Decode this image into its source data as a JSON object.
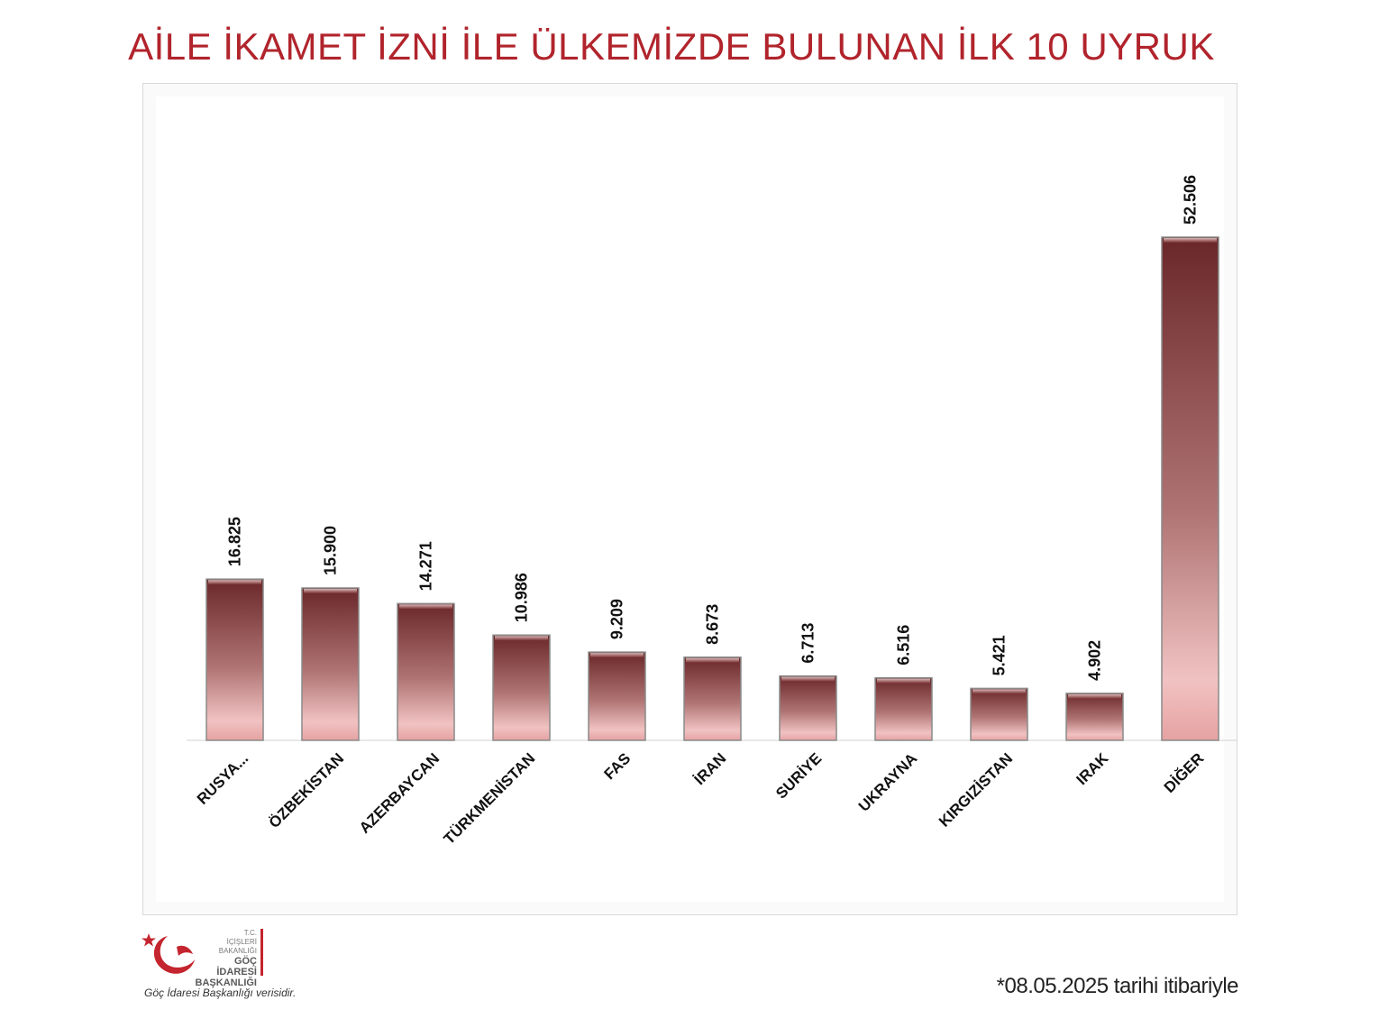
{
  "header": {
    "title": "AİLE İKAMET İZNİ İLE ÜLKEMİZDE BULUNAN İLK 10 UYRUK"
  },
  "logo": {
    "line1": "T.C.",
    "line2": "İÇİŞLERİ BAKANLIĞI",
    "line3": "GÖÇ İDARESİ",
    "line4": "BAŞKANLIĞI"
  },
  "footer": {
    "source": "Göç İdaresi Başkanlığı verisidir.",
    "date_note": "*08.05.2025 tarihi itibariyle"
  },
  "colors": {
    "title": "#b1242c",
    "bar_dark": "#6e2a2c",
    "bar_light": "#f2c3c3",
    "accent": "#c4252e"
  },
  "chart_data": {
    "type": "bar",
    "title": "AİLE İKAMET İZNİ İLE ÜLKEMİZDE BULUNAN İLK 10 UYRUK",
    "xlabel": "",
    "ylabel": "",
    "categories": [
      "RUSYA...",
      "ÖZBEKİSTAN",
      "AZERBAYCAN",
      "TÜRKMENİSTAN",
      "FAS",
      "İRAN",
      "SURİYE",
      "UKRAYNA",
      "KIRGIZİSTAN",
      "IRAK",
      "DİĞER"
    ],
    "values": [
      16825,
      15900,
      14271,
      10986,
      9209,
      8673,
      6713,
      6516,
      5421,
      4902,
      52506
    ],
    "data_labels": [
      "16.825",
      "15.900",
      "14.271",
      "10.986",
      "9.209",
      "8.673",
      "6.713",
      "6.516",
      "5.421",
      "4.902",
      "52.506"
    ],
    "ylim": [
      0,
      60000
    ],
    "grid": false,
    "legend": "none"
  }
}
